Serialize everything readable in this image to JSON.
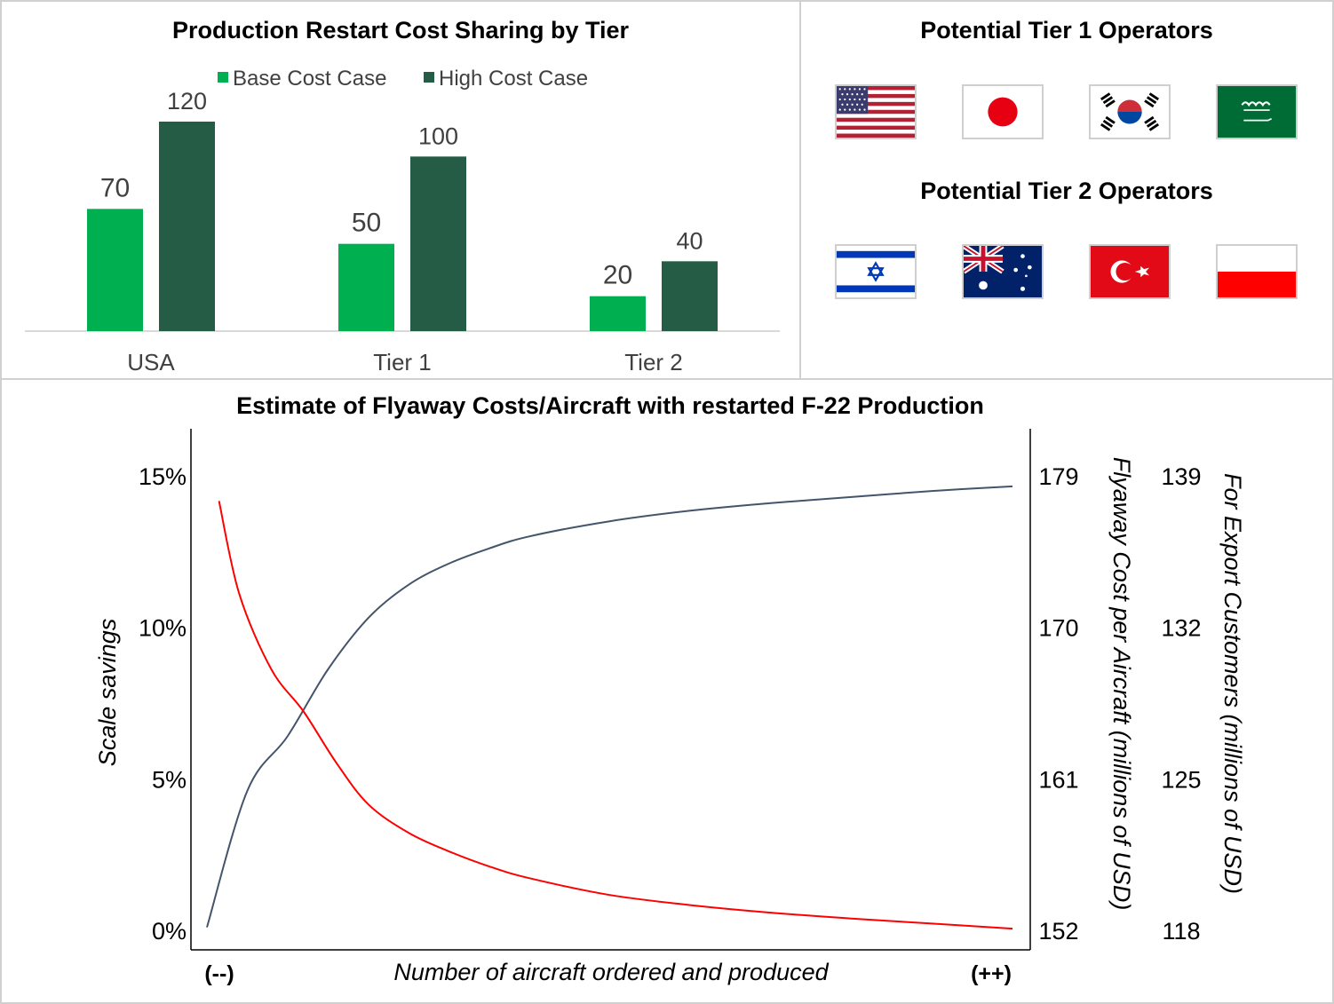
{
  "chart_data": [
    {
      "type": "bar",
      "title": "Production Restart Cost Sharing by Tier",
      "categories": [
        "USA",
        "Tier 1",
        "Tier 2"
      ],
      "series": [
        {
          "name": "Base Cost Case",
          "values": [
            70,
            50,
            20
          ],
          "color": "#00b050"
        },
        {
          "name": "High Cost Case",
          "values": [
            120,
            100,
            40
          ],
          "color": "#245c45"
        }
      ],
      "ylim": [
        0,
        120
      ],
      "legend": "top",
      "grid": false
    },
    {
      "type": "line",
      "title": "Estimate of Flyaway Costs/Aircraft with restarted F-22 Production",
      "xlabel": "Number of aircraft ordered and produced",
      "x_tick_labels": [
        "(--)",
        "(++)"
      ],
      "ylabel_left": "Scale savings",
      "ylabel_right": "Flyaway Cost per Aircraft (millions of USD)",
      "ylabel_right2": "For Export Customers (millions of USD)",
      "y_ticks_left": [
        "0%",
        "5%",
        "10%",
        "15%"
      ],
      "y_ticks_right": [
        "152",
        "161",
        "170",
        "179"
      ],
      "y_ticks_right2": [
        "118",
        "125",
        "132",
        "139"
      ],
      "ylim": [
        0,
        15
      ],
      "grid": false,
      "series": [
        {
          "axis": "left",
          "color": "#44546a",
          "x": [
            0,
            0.05,
            0.1,
            0.15,
            0.2,
            0.25,
            0.3,
            0.35,
            0.4,
            0.5,
            0.6,
            0.7,
            0.8,
            0.9,
            1.0
          ],
          "y": [
            0.1,
            4.6,
            6.4,
            8.6,
            10.3,
            11.4,
            12.1,
            12.6,
            13.0,
            13.5,
            13.85,
            14.1,
            14.3,
            14.5,
            14.65
          ]
        },
        {
          "axis": "right",
          "color": "#ff0000",
          "x": [
            0.015,
            0.04,
            0.08,
            0.12,
            0.16,
            0.2,
            0.25,
            0.3,
            0.35,
            0.4,
            0.5,
            0.6,
            0.7,
            0.8,
            0.9,
            1.0
          ],
          "y": [
            177.5,
            172,
            167.5,
            165,
            162,
            159.5,
            157.8,
            156.7,
            155.8,
            155.1,
            154.1,
            153.5,
            153.05,
            152.7,
            152.4,
            152.1
          ]
        }
      ]
    }
  ],
  "flags": {
    "tier1_title": "Potential Tier 1 Operators",
    "tier2_title": "Potential Tier 2 Operators",
    "tier1": [
      "usa-flag-icon",
      "japan-flag-icon",
      "south-korea-flag-icon",
      "saudi-arabia-flag-icon"
    ],
    "tier2": [
      "israel-flag-icon",
      "australia-flag-icon",
      "turkey-flag-icon",
      "poland-flag-icon"
    ]
  }
}
